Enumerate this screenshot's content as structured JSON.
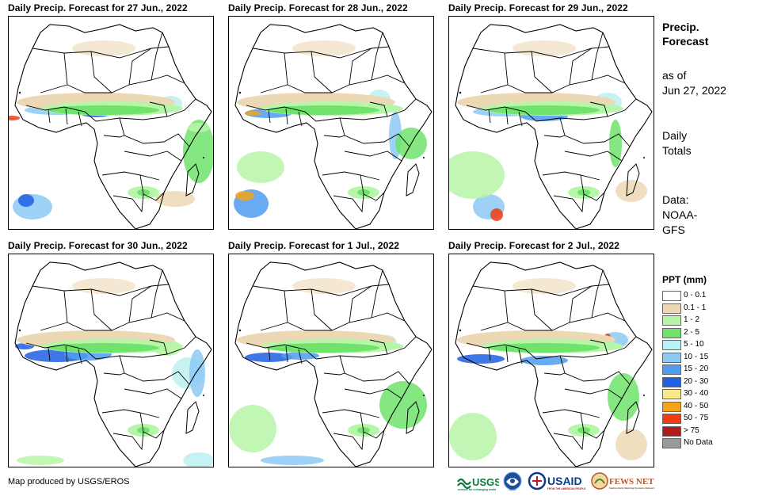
{
  "panels": [
    {
      "title": "Daily Precip. Forecast for 27 Jun., 2022"
    },
    {
      "title": "Daily Precip. Forecast for 28 Jun., 2022"
    },
    {
      "title": "Daily Precip. Forecast for 29 Jun., 2022"
    },
    {
      "title": "Daily Precip. Forecast for 30 Jun., 2022"
    },
    {
      "title": "Daily Precip. Forecast for 1 Jul., 2022"
    },
    {
      "title": "Daily Precip. Forecast for 2 Jul., 2022"
    }
  ],
  "sidebar": {
    "title_line1": "Precip.",
    "title_line2": "Forecast",
    "asof_line1": "as of",
    "asof_line2": "Jun 27, 2022",
    "daily_line1": "Daily",
    "daily_line2": "Totals",
    "data_line1": "Data:",
    "data_line2": "NOAA-",
    "data_line3": "GFS"
  },
  "legend": {
    "title": "PPT (mm)",
    "items": [
      {
        "label": "0 - 0.1",
        "color": "#ffffff"
      },
      {
        "label": "0.1 - 1",
        "color": "#ecd8b4"
      },
      {
        "label": "1 - 2",
        "color": "#b7f5a8"
      },
      {
        "label": "2 - 5",
        "color": "#6fe36c"
      },
      {
        "label": "5 - 10",
        "color": "#bdf0f2"
      },
      {
        "label": "10 - 15",
        "color": "#8cc9f4"
      },
      {
        "label": "15 - 20",
        "color": "#4f9cf0"
      },
      {
        "label": "20 - 30",
        "color": "#1f5fe3"
      },
      {
        "label": "30 - 40",
        "color": "#f8e98a"
      },
      {
        "label": "40 - 50",
        "color": "#f3a418"
      },
      {
        "label": "50 - 75",
        "color": "#ef3c10"
      },
      {
        "label": "> 75",
        "color": "#b01a1a"
      },
      {
        "label": "No Data",
        "color": "#999999"
      }
    ]
  },
  "footer": {
    "credit": "Map produced by USGS/EROS",
    "logo_usgs": "USGS",
    "logo_noaa": "NOAA",
    "logo_usaid": "USAID",
    "logo_fews": "FEWS NET"
  }
}
